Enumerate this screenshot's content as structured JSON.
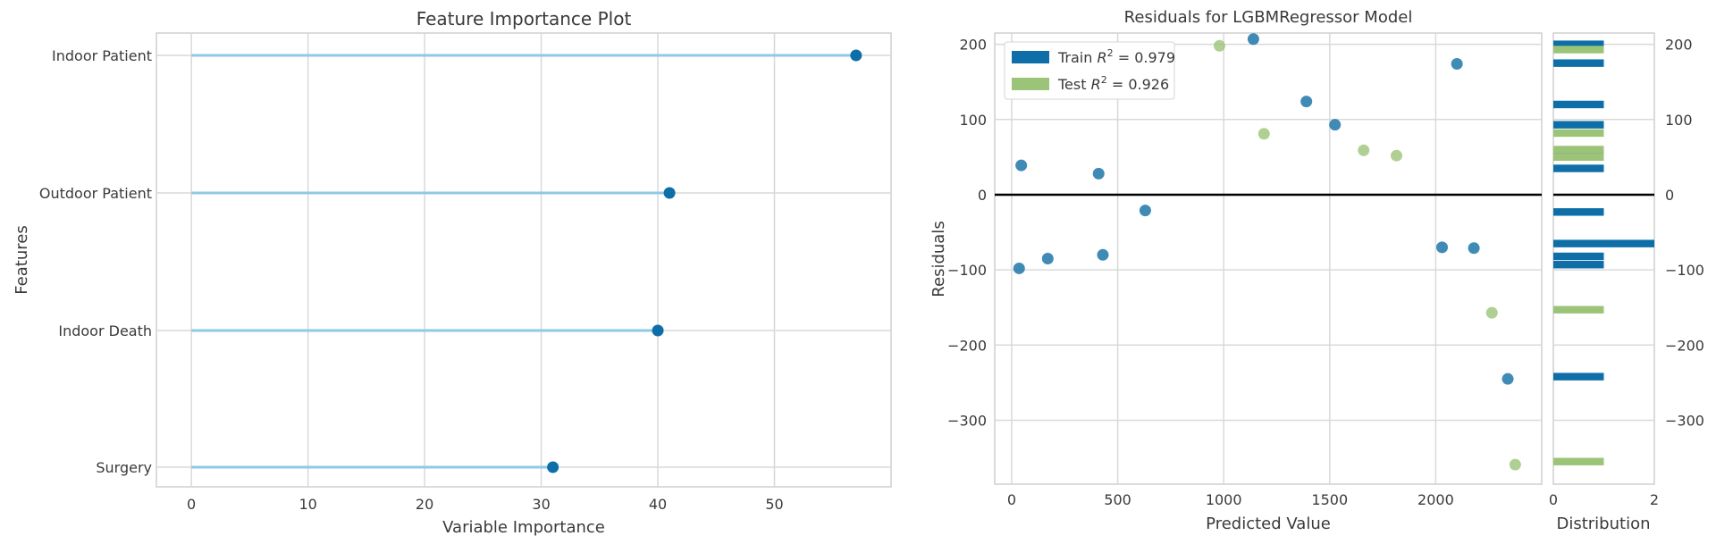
{
  "chart_data": [
    {
      "type": "lollipop",
      "title": "Feature Importance Plot",
      "xlabel": "Variable Importance",
      "ylabel": "Features",
      "xlim": [
        -3,
        60
      ],
      "xticks": [
        0,
        10,
        20,
        30,
        40,
        50
      ],
      "categories": [
        "Indoor Patient",
        "Outdoor Patient",
        "Indoor Death",
        "Surgery"
      ],
      "values": [
        57,
        41,
        40,
        31
      ],
      "grid": true,
      "colors": {
        "stem": "#8ecae6",
        "dot": "#0e6ea8"
      }
    },
    {
      "type": "scatter",
      "title": "Residuals for LGBMRegressor Model",
      "xlabel": "Predicted Value",
      "ylabel": "Residuals",
      "xlim": [
        -80,
        2500
      ],
      "ylim": [
        -385,
        215
      ],
      "xticks": [
        0,
        500,
        1000,
        1500,
        2000
      ],
      "yticks": [
        -300,
        -200,
        -100,
        0,
        100,
        200
      ],
      "grid": true,
      "legend_position": "top-left",
      "series": [
        {
          "name": "Train R^2 = 0.979",
          "legend_prefix": "Train",
          "legend_suffix": " = 0.979",
          "color": "#1f77a8",
          "points": [
            [
              35,
              -98
            ],
            [
              45,
              39
            ],
            [
              170,
              -85
            ],
            [
              410,
              28
            ],
            [
              430,
              -80
            ],
            [
              630,
              -21
            ],
            [
              1140,
              207
            ],
            [
              1390,
              124
            ],
            [
              1525,
              93
            ],
            [
              2030,
              -70
            ],
            [
              2100,
              174
            ],
            [
              2180,
              -71
            ],
            [
              2340,
              -245
            ]
          ]
        },
        {
          "name": "Test R^2 = 0.926",
          "legend_prefix": "Test",
          "legend_suffix": " = 0.926",
          "color": "#9cc478",
          "points": [
            [
              980,
              198
            ],
            [
              1190,
              81
            ],
            [
              1660,
              59
            ],
            [
              1815,
              52
            ],
            [
              2265,
              -157
            ],
            [
              2375,
              -359
            ]
          ]
        }
      ]
    },
    {
      "type": "bar",
      "orientation": "horizontal",
      "xlabel": "Distribution",
      "xlim": [
        0,
        2
      ],
      "xticks": [
        0,
        2
      ],
      "ylim": [
        -385,
        215
      ],
      "yticks": [
        -300,
        -200,
        -100,
        0,
        100,
        200
      ],
      "series": [
        {
          "name": "Train",
          "color": "#0e6ea8",
          "bins": [
            [
              200,
              1
            ],
            [
              175,
              1
            ],
            [
              120,
              1
            ],
            [
              93,
              1
            ],
            [
              55,
              1
            ],
            [
              35,
              1
            ],
            [
              -23,
              1
            ],
            [
              -65,
              2
            ],
            [
              -82,
              1
            ],
            [
              -93,
              1
            ],
            [
              -242,
              1
            ]
          ]
        },
        {
          "name": "Test",
          "color": "#9cc478",
          "bins": [
            [
              193,
              1
            ],
            [
              82,
              1
            ],
            [
              60,
              1
            ],
            [
              50,
              1
            ],
            [
              -153,
              1
            ],
            [
              -355,
              1
            ]
          ]
        }
      ]
    }
  ]
}
